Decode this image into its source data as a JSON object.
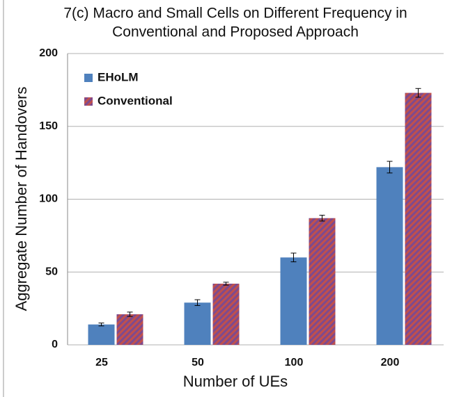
{
  "chart_data": {
    "type": "bar",
    "title": [
      "7(c) Macro and Small Cells on Different Frequency in",
      "Conventional and Proposed Approach"
    ],
    "x_label": "Number of UEs",
    "y_label": "Aggregate Number of Handovers",
    "categories": [
      "25",
      "50",
      "100",
      "200"
    ],
    "series": [
      {
        "name": "EHoLM",
        "color": "#4f81bd",
        "values": [
          14,
          29,
          60,
          122
        ],
        "errors": [
          1,
          2,
          3,
          4
        ]
      },
      {
        "name": "Conventional",
        "color": "#c0504d",
        "hatch": "#7e4a8e",
        "values": [
          21,
          42,
          87,
          173
        ],
        "errors": [
          1.5,
          1,
          2,
          3
        ]
      }
    ],
    "ylim": [
      0,
      200
    ],
    "yticks": [
      0,
      50,
      100,
      150,
      200
    ],
    "grid": true,
    "legend": "upper left"
  }
}
